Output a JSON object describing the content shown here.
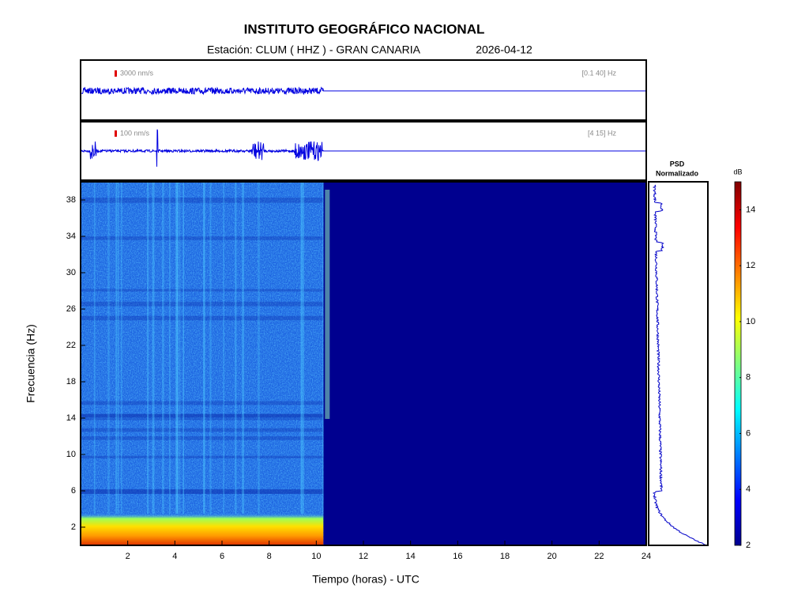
{
  "chart_data": {
    "type": "spectrogram",
    "title": "INSTITUTO GEOGRÁFICO NACIONAL",
    "subtitle": "Estación:  CLUM ( HHZ ) - GRAN CANARIA",
    "date": "2026-04-12",
    "xlabel": "Tiempo (horas) - UTC",
    "ylabel": "Frecuencia  (Hz)",
    "xlim": [
      0,
      24
    ],
    "xticks": [
      2,
      4,
      6,
      8,
      10,
      12,
      14,
      16,
      18,
      20,
      22,
      24
    ],
    "ylim": [
      0,
      40
    ],
    "yticks": [
      2,
      6,
      10,
      14,
      18,
      22,
      26,
      30,
      34,
      38
    ],
    "data_xlim": [
      0,
      10.3
    ],
    "traces": [
      {
        "scale": "3000 nm/s",
        "band": "[0.1 40] Hz"
      },
      {
        "scale": "100 nm/s",
        "band": "[4 15] Hz"
      }
    ],
    "psd_title": "PSD",
    "psd_subtitle": "Normalizado",
    "colorbar": {
      "label": "dB",
      "lim": [
        2,
        15
      ],
      "ticks": [
        2,
        4,
        6,
        8,
        10,
        12,
        14
      ]
    }
  }
}
